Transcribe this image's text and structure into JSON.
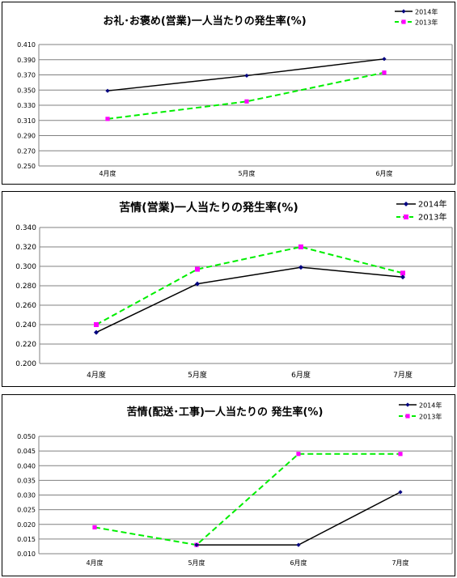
{
  "chart_data": [
    {
      "type": "line",
      "title": "お礼･お褒め(営業)一人当たりの発生率(%)",
      "categories": [
        "4月度",
        "5月度",
        "6月度"
      ],
      "ylim": [
        0.25,
        0.41
      ],
      "yticks": [
        "0.410",
        "0.390",
        "0.370",
        "0.350",
        "0.330",
        "0.310",
        "0.290",
        "0.270",
        "0.250"
      ],
      "grid": true,
      "legend": "top-right",
      "series": [
        {
          "name": "2014年",
          "values": [
            0.349,
            0.369,
            0.391
          ],
          "color": "#000000",
          "marker": "diamond-navy",
          "dash": "solid"
        },
        {
          "name": "2013年",
          "values": [
            0.312,
            0.335,
            0.373
          ],
          "color": "#00ee00",
          "marker": "square-magenta",
          "dash": "dashed"
        }
      ]
    },
    {
      "type": "line",
      "title": "苦情(営業)一人当たりの発生率(%)",
      "categories": [
        "4月度",
        "5月度",
        "6月度",
        "7月度"
      ],
      "ylim": [
        0.2,
        0.34
      ],
      "yticks": [
        "0.340",
        "0.320",
        "0.300",
        "0.280",
        "0.260",
        "0.240",
        "0.220",
        "0.200"
      ],
      "grid": true,
      "legend": "top-right",
      "series": [
        {
          "name": "2014年",
          "values": [
            0.232,
            0.282,
            0.299,
            0.289
          ],
          "color": "#000000",
          "marker": "diamond-navy",
          "dash": "solid"
        },
        {
          "name": "2013年",
          "values": [
            0.24,
            0.297,
            0.32,
            0.293
          ],
          "color": "#00ee00",
          "marker": "square-magenta",
          "dash": "dashed"
        }
      ]
    },
    {
      "type": "line",
      "title": "苦情(配送･工事)一人当たりの 発生率(%)",
      "categories": [
        "4月度",
        "5月度",
        "6月度",
        "7月度"
      ],
      "ylim": [
        0.01,
        0.05
      ],
      "yticks": [
        "0.050",
        "0.045",
        "0.040",
        "0.035",
        "0.030",
        "0.025",
        "0.020",
        "0.015",
        "0.010"
      ],
      "grid": true,
      "legend": "top-right",
      "series": [
        {
          "name": "2014年",
          "values": [
            null,
            0.013,
            0.013,
            0.031
          ],
          "color": "#000000",
          "marker": "diamond-navy",
          "dash": "solid"
        },
        {
          "name": "2013年",
          "values": [
            0.019,
            0.013,
            0.044,
            0.044
          ],
          "color": "#00ee00",
          "marker": "square-magenta",
          "dash": "dashed"
        }
      ]
    }
  ]
}
